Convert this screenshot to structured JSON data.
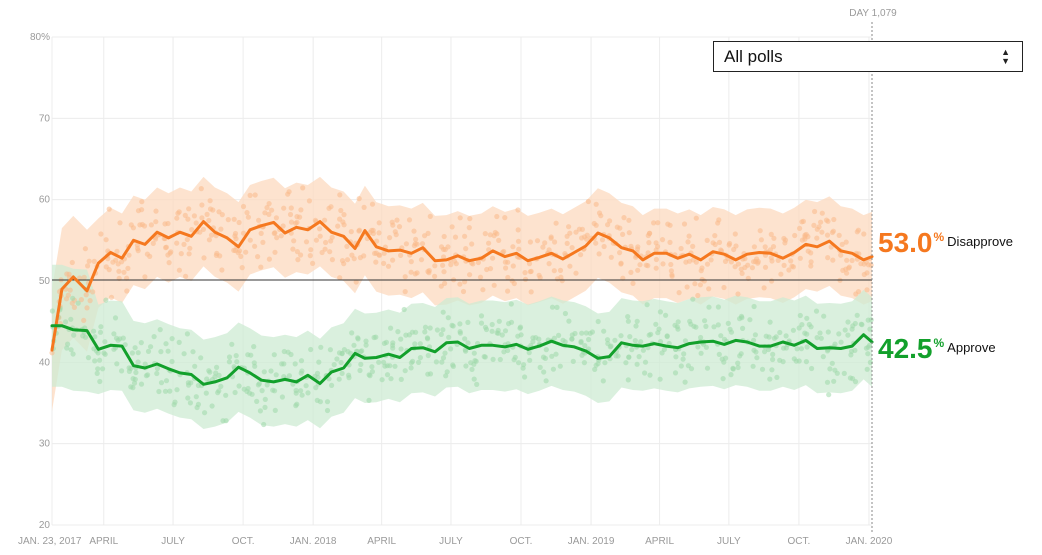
{
  "dropdown": {
    "selected": "All polls",
    "arrows_up": "▲",
    "arrows_down": "▼"
  },
  "marker": {
    "label": "DAY 1,079"
  },
  "colors": {
    "disapprove": "#f5781f",
    "approve": "#12a02b",
    "grid": "#ececec",
    "baseline": "#333333"
  },
  "chart_data": {
    "type": "line",
    "title": "",
    "xlabel": "",
    "ylabel": "",
    "ylim": [
      20,
      80
    ],
    "y_ticks": [
      "20",
      "30",
      "40",
      "50",
      "60",
      "70",
      "80%"
    ],
    "x_tick_labels": [
      "JAN. 23, 2017",
      "APRIL",
      "JULY",
      "OCT.",
      "JAN. 2018",
      "APRIL",
      "JULY",
      "OCT.",
      "JAN. 2019",
      "APRIL",
      "JULY",
      "OCT.",
      "JAN. 2020"
    ],
    "grid": true,
    "legend": "end-labels-right",
    "x": [
      "2017-01-23",
      "2017-02-05",
      "2017-02-20",
      "2017-03-10",
      "2017-03-25",
      "2017-04-10",
      "2017-04-25",
      "2017-05-10",
      "2017-05-25",
      "2017-06-10",
      "2017-06-25",
      "2017-07-10",
      "2017-07-25",
      "2017-08-10",
      "2017-08-25",
      "2017-09-10",
      "2017-09-25",
      "2017-10-10",
      "2017-10-25",
      "2017-11-10",
      "2017-11-25",
      "2017-12-10",
      "2017-12-25",
      "2018-01-10",
      "2018-01-25",
      "2018-02-10",
      "2018-02-25",
      "2018-03-10",
      "2018-03-25",
      "2018-04-10",
      "2018-04-25",
      "2018-05-10",
      "2018-05-25",
      "2018-06-10",
      "2018-06-25",
      "2018-07-10",
      "2018-07-25",
      "2018-08-10",
      "2018-08-25",
      "2018-09-10",
      "2018-09-25",
      "2018-10-10",
      "2018-10-25",
      "2018-11-10",
      "2018-11-25",
      "2018-12-10",
      "2018-12-25",
      "2019-01-10",
      "2019-01-25",
      "2019-02-10",
      "2019-02-25",
      "2019-03-10",
      "2019-03-25",
      "2019-04-10",
      "2019-04-25",
      "2019-05-10",
      "2019-05-25",
      "2019-06-10",
      "2019-06-25",
      "2019-07-10",
      "2019-07-25",
      "2019-08-10",
      "2019-08-25",
      "2019-09-10",
      "2019-09-25",
      "2019-10-10",
      "2019-10-25",
      "2019-11-10",
      "2019-11-25",
      "2019-12-10",
      "2019-12-25",
      "2020-01-05"
    ],
    "series": [
      {
        "name": "Disapprove",
        "end_label": "53.0",
        "values": [
          41.5,
          49.0,
          50.5,
          48.8,
          52.2,
          53.5,
          52.8,
          55.0,
          54.5,
          56.0,
          55.3,
          56.0,
          55.5,
          57.3,
          56.0,
          55.3,
          54.2,
          56.3,
          56.8,
          57.2,
          55.9,
          56.6,
          56.3,
          57.3,
          56.0,
          55.5,
          54.0,
          56.2,
          54.2,
          53.7,
          53.8,
          53.4,
          54.1,
          52.5,
          52.6,
          53.1,
          52.5,
          52.8,
          53.7,
          53.0,
          53.4,
          52.5,
          52.9,
          53.4,
          52.7,
          53.5,
          54.3,
          55.9,
          55.3,
          54.1,
          53.7,
          52.6,
          53.4,
          53.4,
          52.8,
          53.3,
          52.6,
          53.6,
          53.3,
          52.6,
          53.3,
          53.5,
          53.4,
          52.8,
          53.5,
          54.5,
          54.2,
          54.9,
          53.7,
          53.4,
          52.6,
          53.0
        ]
      },
      {
        "name": "Approve",
        "end_label": "42.5",
        "values": [
          44.5,
          44.5,
          44.0,
          43.9,
          41.6,
          42.1,
          42.0,
          39.6,
          39.3,
          39.8,
          39.2,
          38.7,
          38.5,
          37.3,
          37.6,
          38.1,
          39.4,
          38.7,
          37.8,
          37.6,
          37.9,
          37.6,
          38.4,
          37.4,
          38.8,
          39.3,
          41.1,
          40.5,
          40.6,
          41.0,
          40.6,
          41.7,
          41.8,
          41.3,
          42.4,
          42.5,
          41.7,
          42.1,
          42.1,
          41.9,
          42.2,
          41.6,
          42.0,
          42.6,
          42.1,
          41.9,
          41.4,
          40.5,
          40.7,
          42.4,
          42.1,
          42.0,
          42.3,
          42.0,
          41.8,
          42.3,
          42.5,
          42.6,
          42.2,
          42.7,
          42.5,
          42.0,
          42.0,
          42.5,
          42.1,
          42.7,
          41.7,
          41.8,
          41.7,
          42.0,
          43.4,
          42.5
        ]
      }
    ]
  }
}
